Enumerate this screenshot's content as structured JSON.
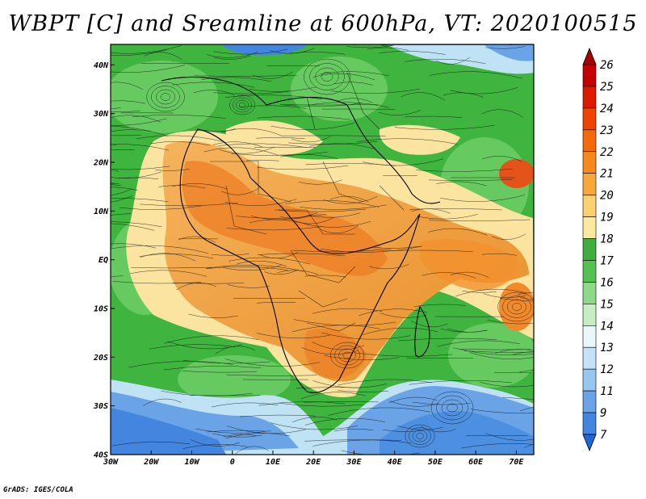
{
  "title": "WBPT [C] and Sreamline at 600hPa, VT: 2020100515",
  "credit": "GrADS: IGES/COLA",
  "axes": {
    "lon_labels": [
      "30W",
      "20W",
      "10W",
      "0",
      "10E",
      "20E",
      "30E",
      "40E",
      "50E",
      "60E",
      "70E"
    ],
    "lat_labels": [
      "40N",
      "30N",
      "20N",
      "10N",
      "EQ",
      "10S",
      "20S",
      "30S",
      "40S"
    ]
  },
  "colorbar": {
    "labels": [
      "26",
      "25",
      "24",
      "23",
      "22",
      "21",
      "20",
      "19",
      "18",
      "17",
      "16",
      "15",
      "14",
      "13",
      "12",
      "11",
      "9",
      "7"
    ],
    "colors": [
      "#a50000",
      "#c40000",
      "#dd1a00",
      "#ee4400",
      "#f26a0c",
      "#f5891b",
      "#f7a83a",
      "#fbd070",
      "#fbe9a0",
      "#3fae3f",
      "#55c152",
      "#8fd88a",
      "#c6eec2",
      "#e9f7fb",
      "#c3e1f7",
      "#97c6ef",
      "#6aa4e6",
      "#4385df",
      "#2166d8"
    ]
  },
  "map": {
    "ocean_color": "#3fb43f",
    "cool_color": "#5f9fe5",
    "warm_color": "#f0a848",
    "hot_color": "#ec7a22"
  }
}
